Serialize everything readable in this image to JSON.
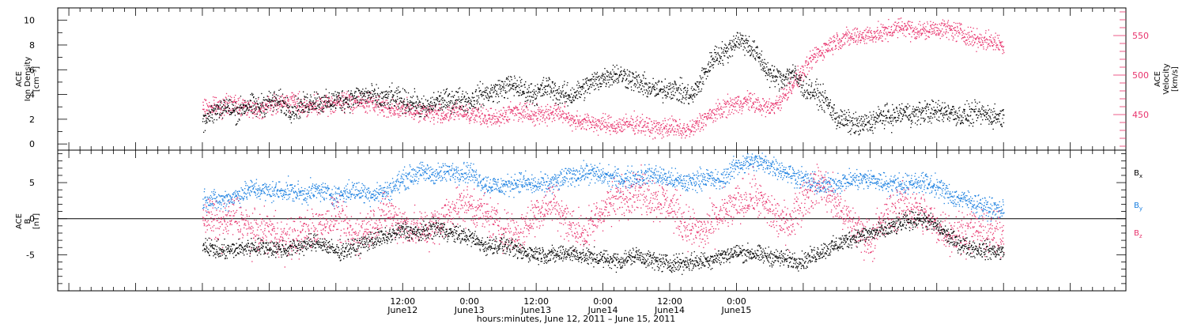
{
  "chart_data": [
    {
      "type": "scatter",
      "panel": "top",
      "ylabel": [
        "ACE",
        "Ion Density",
        "[cm⁻³]"
      ],
      "ylim": [
        -0.5,
        11
      ],
      "yticks": [
        0,
        2,
        4,
        6,
        8,
        10
      ],
      "y2label": [
        "ACE",
        "Velocity",
        "[km/s]"
      ],
      "y2lim": [
        405,
        585
      ],
      "y2ticks": [
        450,
        500,
        550
      ],
      "series": [
        {
          "key": "density",
          "axis": "left",
          "color": "#000000",
          "x": [
            0,
            2,
            4,
            6,
            8,
            10,
            12,
            14,
            16,
            18,
            20,
            22,
            24,
            26,
            28,
            30,
            32,
            34,
            36,
            38,
            40,
            42,
            44,
            46,
            48,
            50,
            52,
            54,
            56,
            58,
            60,
            62,
            64,
            66,
            68,
            70,
            72,
            74,
            76,
            78,
            80,
            82,
            84,
            86,
            88,
            90,
            92,
            94,
            96,
            98,
            100,
            102,
            104,
            106,
            108,
            110,
            112,
            114,
            116,
            118,
            120,
            122,
            124,
            126,
            128,
            130,
            132,
            134,
            136,
            138,
            140,
            142,
            144
          ],
          "y": [
            2.0,
            2.6,
            3.1,
            2.6,
            3.2,
            3.0,
            3.5,
            3.4,
            2.8,
            3.1,
            3.6,
            3.3,
            3.6,
            3.6,
            3.9,
            4.0,
            3.6,
            3.8,
            3.5,
            3.4,
            2.8,
            3.5,
            3.5,
            3.7,
            3.5,
            4.0,
            4.2,
            4.6,
            4.8,
            4.2,
            4.1,
            4.7,
            4.1,
            3.9,
            4.4,
            5.0,
            5.4,
            5.7,
            5.5,
            5.0,
            4.6,
            4.3,
            4.6,
            4.2,
            3.9,
            5.5,
            7.2,
            7.4,
            8.5,
            8.1,
            7.0,
            5.6,
            5.3,
            5.8,
            4.6,
            4.2,
            3.5,
            2.1,
            1.8,
            1.5,
            1.8,
            2.3,
            2.2,
            2.6,
            2.4,
            2.7,
            2.6,
            2.7,
            2.3,
            2.4,
            2.5,
            2.3,
            2.2
          ]
        },
        {
          "key": "velocity",
          "axis": "right",
          "color": "#e8336d",
          "x": [
            0,
            2,
            4,
            6,
            8,
            10,
            12,
            14,
            16,
            18,
            20,
            22,
            24,
            26,
            28,
            30,
            32,
            34,
            36,
            38,
            40,
            42,
            44,
            46,
            48,
            50,
            52,
            54,
            56,
            58,
            60,
            62,
            64,
            66,
            68,
            70,
            72,
            74,
            76,
            78,
            80,
            82,
            84,
            86,
            88,
            90,
            92,
            94,
            96,
            98,
            100,
            102,
            104,
            106,
            108,
            110,
            112,
            114,
            116,
            118,
            120,
            122,
            124,
            126,
            128,
            130,
            132,
            134,
            136,
            138,
            140,
            142,
            144
          ],
          "y": [
            458,
            460,
            462,
            463,
            460,
            458,
            462,
            465,
            468,
            462,
            460,
            462,
            465,
            468,
            466,
            465,
            462,
            458,
            457,
            455,
            454,
            452,
            450,
            455,
            452,
            448,
            445,
            450,
            455,
            455,
            450,
            452,
            454,
            445,
            442,
            440,
            438,
            436,
            438,
            440,
            435,
            432,
            436,
            430,
            432,
            445,
            452,
            460,
            464,
            468,
            462,
            458,
            470,
            490,
            505,
            525,
            535,
            545,
            548,
            550,
            552,
            553,
            558,
            562,
            557,
            556,
            560,
            558,
            555,
            548,
            545,
            543,
            538
          ]
        }
      ]
    },
    {
      "type": "scatter",
      "panel": "bottom",
      "ylabel": [
        "ACE",
        "B",
        "[nT]"
      ],
      "ylim": [
        -10,
        9.5
      ],
      "yticks": [
        -5,
        0,
        5
      ],
      "hline": 0,
      "legend": [
        {
          "label": "B",
          "sub": "x",
          "color": "#000000"
        },
        {
          "label": "B",
          "sub": "y",
          "color": "#1a7fe0"
        },
        {
          "label": "B",
          "sub": "z",
          "color": "#e8336d"
        }
      ],
      "series": [
        {
          "key": "Bx",
          "color": "#000000",
          "x": [
            0,
            3,
            6,
            9,
            12,
            15,
            18,
            21,
            24,
            27,
            30,
            33,
            36,
            39,
            42,
            45,
            48,
            51,
            54,
            57,
            60,
            63,
            66,
            69,
            72,
            75,
            78,
            81,
            84,
            87,
            90,
            93,
            96,
            99,
            102,
            105,
            108,
            111,
            114,
            117,
            120,
            123,
            126,
            129,
            132,
            135,
            138,
            141,
            144
          ],
          "y": [
            -3.5,
            -4.5,
            -4.2,
            -3.8,
            -4.0,
            -4.2,
            -3.6,
            -3.2,
            -4.5,
            -4.0,
            -3.0,
            -2.5,
            -1.5,
            -2.0,
            -1.2,
            -2.0,
            -2.5,
            -3.8,
            -3.5,
            -4.5,
            -4.8,
            -5.0,
            -4.6,
            -5.2,
            -5.5,
            -5.8,
            -5.0,
            -5.8,
            -6.2,
            -6.0,
            -5.8,
            -5.2,
            -4.6,
            -4.8,
            -5.2,
            -5.6,
            -5.8,
            -4.5,
            -3.6,
            -2.5,
            -2.0,
            -1.5,
            -0.5,
            0.2,
            -1.0,
            -3.0,
            -4.0,
            -4.3,
            -4.6
          ]
        },
        {
          "key": "By",
          "color": "#1a7fe0",
          "x": [
            0,
            3,
            6,
            9,
            12,
            15,
            18,
            21,
            24,
            27,
            30,
            33,
            36,
            39,
            42,
            45,
            48,
            51,
            54,
            57,
            60,
            63,
            66,
            69,
            72,
            75,
            78,
            81,
            84,
            87,
            90,
            93,
            96,
            99,
            102,
            105,
            108,
            111,
            114,
            117,
            120,
            123,
            126,
            129,
            132,
            135,
            138,
            141,
            144
          ],
          "y": [
            2.8,
            2.5,
            3.2,
            4.2,
            3.8,
            4.0,
            3.5,
            4.0,
            3.2,
            4.0,
            3.5,
            3.8,
            5.5,
            6.5,
            6.2,
            6.6,
            6.5,
            4.8,
            4.5,
            5.2,
            4.6,
            5.0,
            6.0,
            6.5,
            6.0,
            5.5,
            5.8,
            6.2,
            5.5,
            5.0,
            5.8,
            5.2,
            7.5,
            8.0,
            7.5,
            6.5,
            5.5,
            4.5,
            5.0,
            5.5,
            5.5,
            5.0,
            4.8,
            5.2,
            4.5,
            3.0,
            2.5,
            1.5,
            1.2
          ]
        },
        {
          "key": "Bz",
          "color": "#e8336d",
          "x": [
            0,
            3,
            6,
            9,
            12,
            15,
            18,
            21,
            24,
            27,
            30,
            33,
            36,
            39,
            42,
            45,
            48,
            51,
            54,
            57,
            60,
            63,
            66,
            69,
            72,
            75,
            78,
            81,
            84,
            87,
            90,
            93,
            96,
            99,
            102,
            105,
            108,
            111,
            114,
            117,
            120,
            123,
            126,
            129,
            132,
            135,
            138,
            141,
            144
          ],
          "y": [
            0.8,
            -1.0,
            0.5,
            -2.0,
            -1.5,
            -3.0,
            -2.0,
            -1.0,
            0.5,
            -2.5,
            -1.0,
            1.0,
            -0.8,
            -1.5,
            -1.0,
            1.5,
            2.0,
            0.5,
            -1.5,
            -2.0,
            1.0,
            2.5,
            -1.0,
            -2.0,
            1.5,
            3.0,
            4.0,
            3.0,
            2.0,
            -1.0,
            -2.0,
            0.5,
            2.0,
            3.5,
            1.0,
            -1.0,
            3.0,
            5.0,
            2.0,
            -1.0,
            -3.0,
            0.5,
            2.0,
            1.0,
            -1.0,
            -2.0,
            -1.5,
            -2.0,
            -2.2
          ]
        }
      ]
    }
  ],
  "xaxis": {
    "xlim": [
      -26,
      166
    ],
    "ticks": [
      {
        "x": 36,
        "time": "12:00",
        "date": "June12"
      },
      {
        "x": 48,
        "time": "0:00",
        "date": "June13"
      },
      {
        "x": 60,
        "time": "12:00",
        "date": "June13"
      },
      {
        "x": 72,
        "time": "0:00",
        "date": "June14"
      },
      {
        "x": 84,
        "time": "12:00",
        "date": "June14"
      },
      {
        "x": 96,
        "time": "0:00",
        "date": "June15"
      }
    ],
    "label": "hours:minutes, June 12, 2011 – June 15, 2011"
  }
}
